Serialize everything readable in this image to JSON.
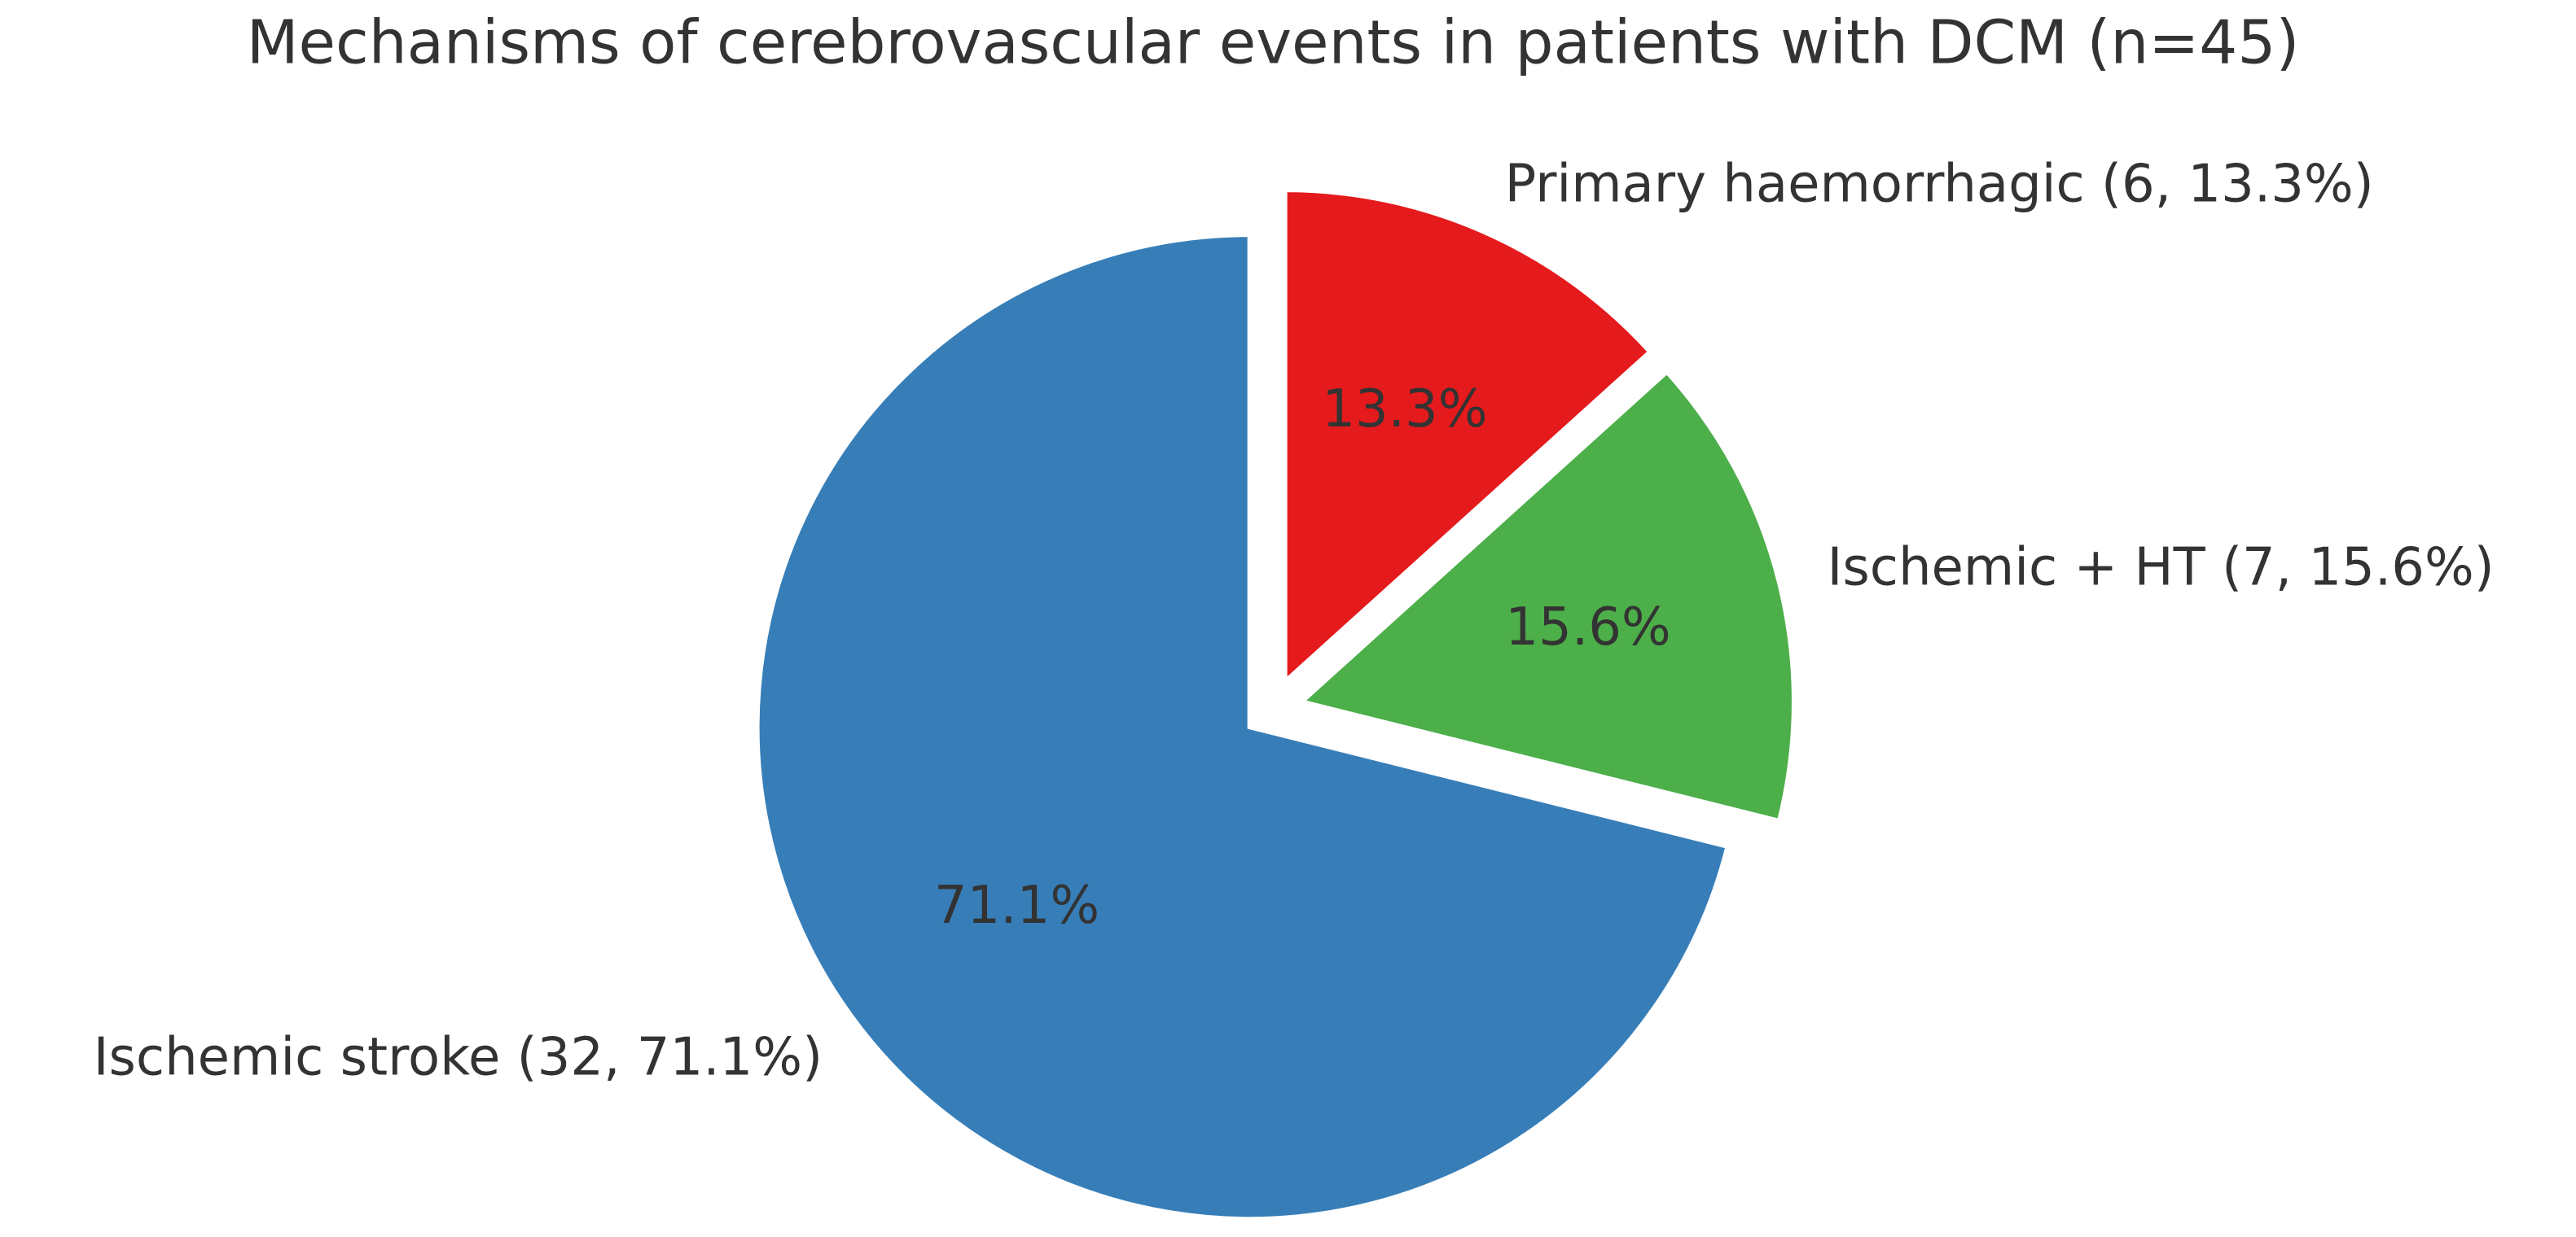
{
  "chart_data": {
    "type": "pie",
    "title": "Mechanisms of cerebrovascular events in patients with DCM (n=45)",
    "categories": [
      "Primary haemorrhagic (6, 13.3%)",
      "Ischemic + HT (7, 15.6%)",
      "Ischemic stroke (32, 71.1%)"
    ],
    "values": [
      13.3,
      15.6,
      71.1
    ],
    "value_labels": [
      "13.3%",
      "15.6%",
      "71.1%"
    ],
    "colors": [
      "#e41a1c",
      "#4daf4a",
      "#377eb8"
    ]
  }
}
